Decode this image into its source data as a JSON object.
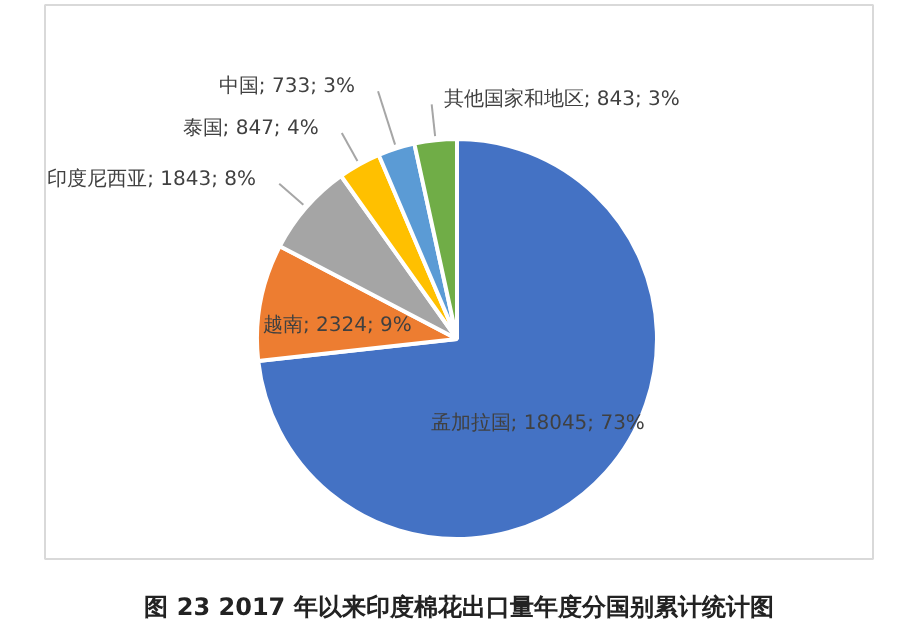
{
  "chart_data": {
    "type": "pie",
    "title": "图 23 2017 年以来印度棉花出口量年度分国别累计统计图",
    "categories": [
      "孟加拉国",
      "越南",
      "印度尼西亚",
      "泰国",
      "中国",
      "其他国家和地区"
    ],
    "values": [
      18045,
      2324,
      1843,
      847,
      733,
      843
    ],
    "colors": [
      "#4472c4",
      "#ed7d31",
      "#a5a5a5",
      "#ffc000",
      "#5b9bd5",
      "#70ad47"
    ],
    "value_labels": [
      "; 18045; 73%",
      "; 2324; 9%",
      "; 1843; 8%",
      "; 847; 4%",
      "; 733; 3%",
      "; 843; 3%"
    ]
  }
}
